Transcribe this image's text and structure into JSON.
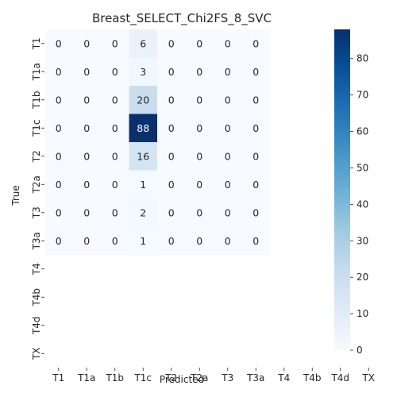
{
  "chart_data": {
    "type": "heatmap",
    "title": "Breast_SELECT_Chi2FS_8_SVC",
    "xlabel": "Predicted",
    "ylabel": "True",
    "x_categories": [
      "T1",
      "T1a",
      "T1b",
      "T1c",
      "T2",
      "T2a",
      "T3",
      "T3a",
      "T4",
      "T4b",
      "T4d",
      "TX"
    ],
    "y_categories": [
      "T1",
      "T1a",
      "T1b",
      "T1c",
      "T2",
      "T2a",
      "T3",
      "T3a",
      "T4",
      "T4b",
      "T4d",
      "TX"
    ],
    "annotated_rows": 8,
    "annotated_cols": 8,
    "values": [
      [
        0,
        0,
        0,
        6,
        0,
        0,
        0,
        0
      ],
      [
        0,
        0,
        0,
        3,
        0,
        0,
        0,
        0
      ],
      [
        0,
        0,
        0,
        20,
        0,
        0,
        0,
        0
      ],
      [
        0,
        0,
        0,
        88,
        0,
        0,
        0,
        0
      ],
      [
        0,
        0,
        0,
        16,
        0,
        0,
        0,
        0
      ],
      [
        0,
        0,
        0,
        1,
        0,
        0,
        0,
        0
      ],
      [
        0,
        0,
        0,
        2,
        0,
        0,
        0,
        0
      ],
      [
        0,
        0,
        0,
        1,
        0,
        0,
        0,
        0
      ]
    ],
    "colormap": "Blues",
    "color_low": "#f7fbff",
    "color_high": "#08306b",
    "colorbar": {
      "range": [
        0,
        88
      ],
      "ticks": [
        0,
        10,
        20,
        30,
        40,
        50,
        60,
        70,
        80
      ]
    },
    "grid": false
  }
}
